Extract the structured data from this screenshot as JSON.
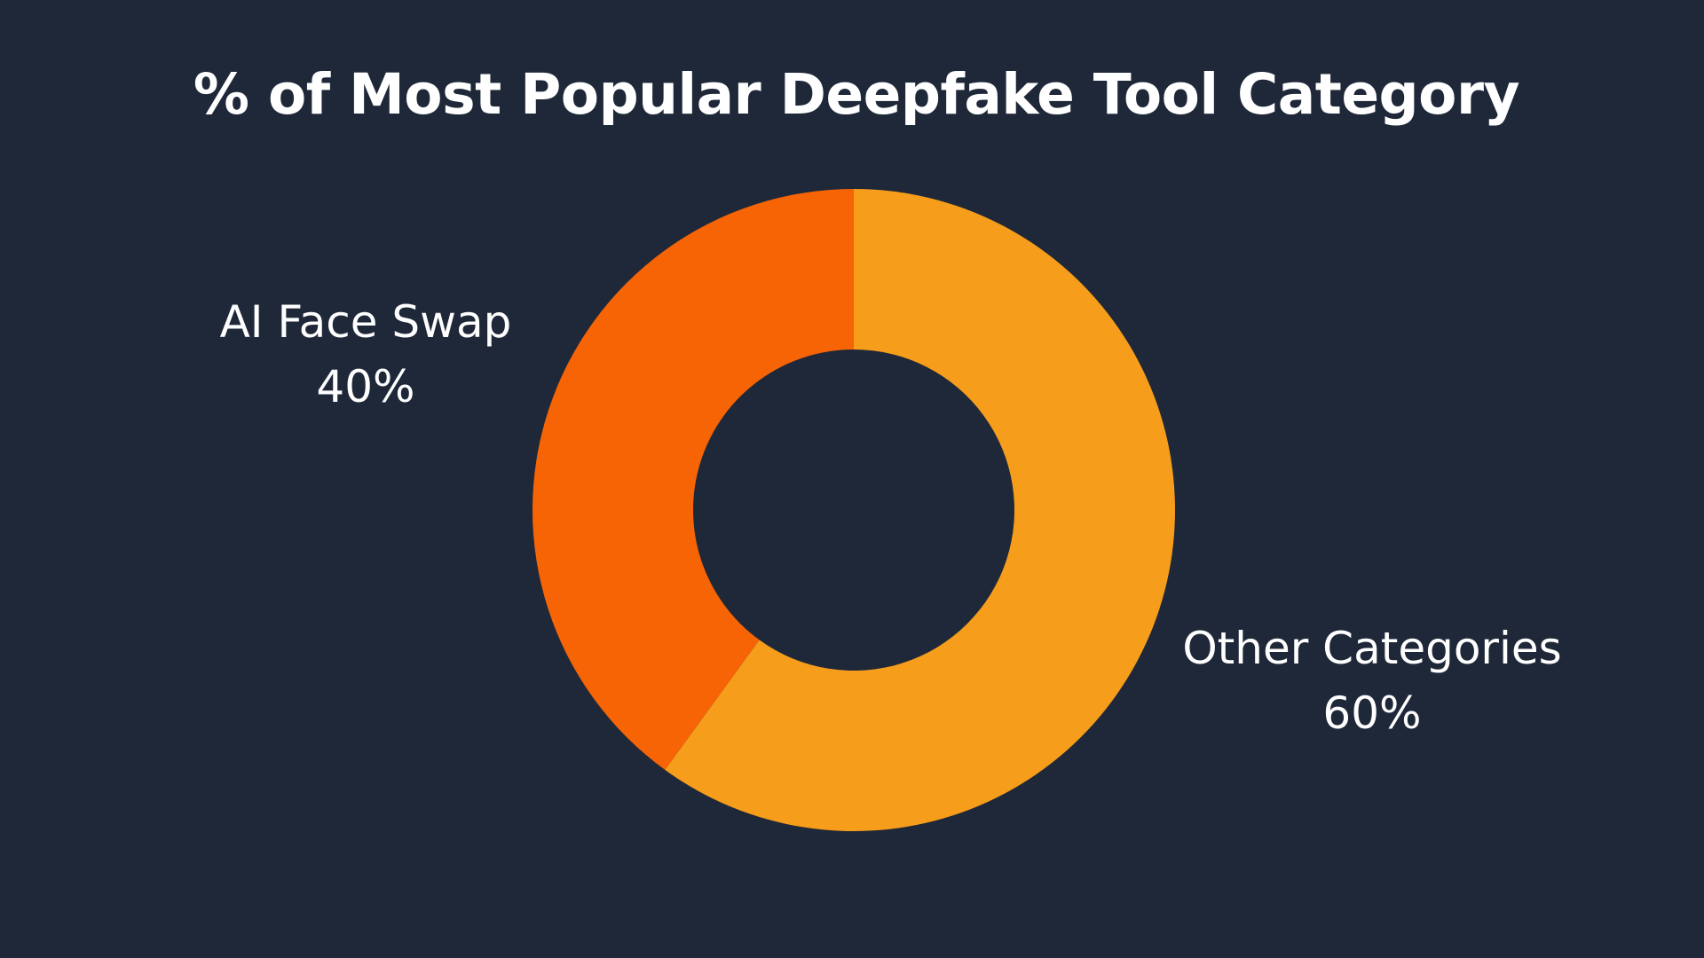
{
  "chart_data": {
    "type": "pie",
    "title": "% of Most Popular Deepfake Tool Category",
    "donut": true,
    "slices": [
      {
        "label": "AI Face Swap",
        "value": 40,
        "value_label": "40%",
        "color": "#f76405"
      },
      {
        "label": "Other Categories",
        "value": 60,
        "value_label": "60%",
        "color": "#f69d1b"
      }
    ]
  },
  "colors": {
    "background": "#1f2839",
    "text": "#ffffff"
  }
}
